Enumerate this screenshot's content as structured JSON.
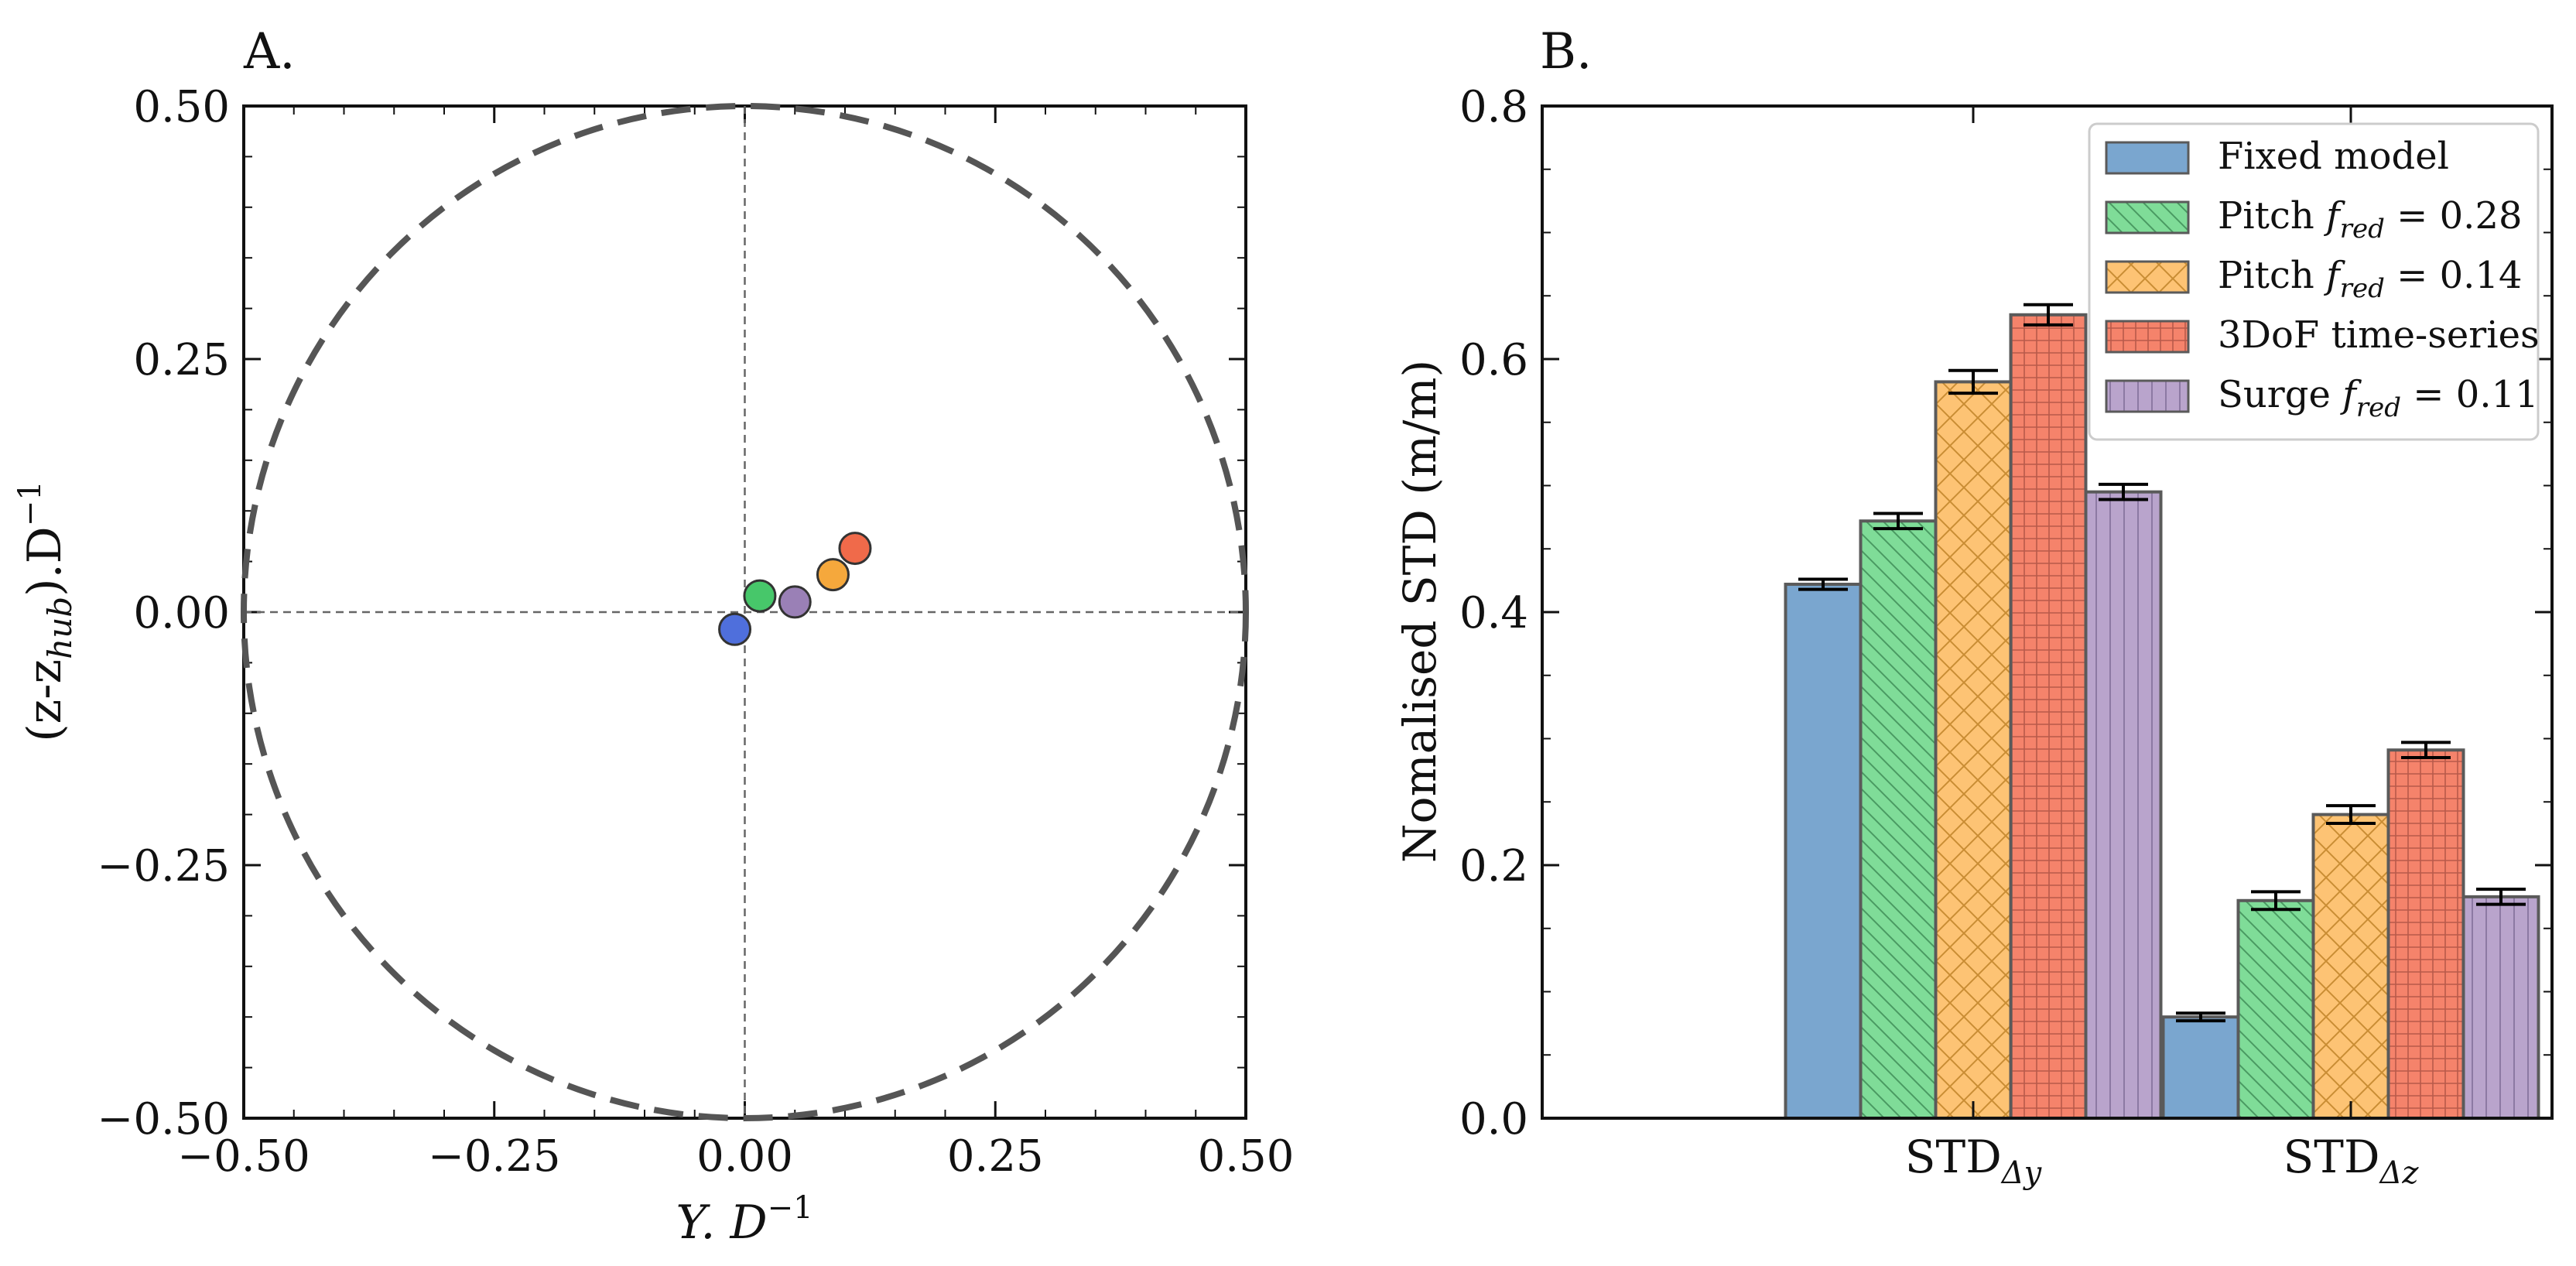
{
  "chart_data": [
    {
      "panel_label": "A.",
      "type": "scatter",
      "xlabel_main": "Y. D",
      "xlabel_sup": "−1",
      "ylabel_main": "(z-z",
      "ylabel_sub": "hub",
      "ylabel_tail": ").D",
      "ylabel_sup": "−1",
      "xlim": [
        -0.5,
        0.5
      ],
      "ylim": [
        -0.5,
        0.5
      ],
      "xticks": [
        -0.5,
        -0.25,
        0.0,
        0.25,
        0.5
      ],
      "yticks": [
        -0.5,
        -0.25,
        0.0,
        0.25,
        0.5
      ],
      "tick_labels": [
        "−0.50",
        "−0.25",
        "0.00",
        "0.25",
        "0.50"
      ],
      "circle_radius": 0.5,
      "points": [
        {
          "name": "Fixed model",
          "x": -0.01,
          "y": -0.017,
          "color": "#4f6fdc"
        },
        {
          "name": "Pitch f_red = 0.28",
          "x": 0.015,
          "y": 0.016,
          "color": "#47c76a"
        },
        {
          "name": "Surge f_red = 0.11",
          "x": 0.05,
          "y": 0.01,
          "color": "#9a80b6"
        },
        {
          "name": "Pitch f_red = 0.14",
          "x": 0.088,
          "y": 0.037,
          "color": "#f5a83c"
        },
        {
          "name": "3DoF time-series",
          "x": 0.11,
          "y": 0.063,
          "color": "#f06a4a"
        }
      ]
    },
    {
      "panel_label": "B.",
      "type": "bar",
      "ylabel": "Nomalised STD (m/m)",
      "ylim": [
        0,
        0.8
      ],
      "yticks": [
        0.0,
        0.2,
        0.4,
        0.6,
        0.8
      ],
      "ytick_labels": [
        "0.0",
        "0.2",
        "0.4",
        "0.6",
        "0.8"
      ],
      "categories": [
        {
          "main": "STD",
          "sub": "Δy"
        },
        {
          "main": "STD",
          "sub": "Δz"
        }
      ],
      "series": [
        {
          "name": "Fixed model",
          "legend_main": "Fixed model",
          "legend_sub": "",
          "legend_val": "",
          "color": "#7aa6cf",
          "hatch": "none",
          "values": [
            0.422,
            0.08
          ],
          "errors": [
            0.004,
            0.003
          ]
        },
        {
          "name": "Pitch f_red = 0.28",
          "legend_main": "Pitch f",
          "legend_sub": "red",
          "legend_val": " = 0.28",
          "color": "#7fdc98",
          "hatch": "diag",
          "values": [
            0.472,
            0.172
          ],
          "errors": [
            0.006,
            0.007
          ]
        },
        {
          "name": "Pitch f_red = 0.14",
          "legend_main": "Pitch f",
          "legend_sub": "red",
          "legend_val": " = 0.14",
          "color": "#fdc374",
          "hatch": "cross",
          "values": [
            0.582,
            0.24
          ],
          "errors": [
            0.009,
            0.007
          ]
        },
        {
          "name": "3DoF time-series",
          "legend_main": "3DoF time-series",
          "legend_sub": "",
          "legend_val": "",
          "color": "#f5836b",
          "hatch": "grid",
          "values": [
            0.635,
            0.291
          ],
          "errors": [
            0.008,
            0.006
          ]
        },
        {
          "name": "Surge f_red = 0.11",
          "legend_main": "Surge f",
          "legend_sub": "red",
          "legend_val": " = 0.11",
          "color": "#b9a4cc",
          "hatch": "vert",
          "values": [
            0.495,
            0.175
          ],
          "errors": [
            0.006,
            0.006
          ]
        }
      ],
      "legend_position": "top-right"
    }
  ]
}
